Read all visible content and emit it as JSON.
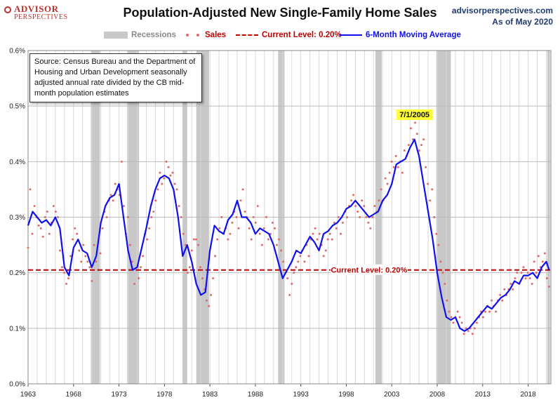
{
  "header": {
    "logo_line1": "ADVISOR",
    "logo_line2": "PERSPECTIVES",
    "title": "Population-Adjusted New Single-Family Home Sales",
    "site": "advisorperspectives.com",
    "date": "As of May 2020"
  },
  "legend": {
    "recessions": "Recessions",
    "sales": "Sales",
    "current": "Current Level: 0.20%",
    "ma": "6-Month Moving Average"
  },
  "note": "Source: Census Bureau and the Department of Housing and Urban Development seasonally adjusted annual rate divided by the CB mid-month population estimates",
  "colors": {
    "recession": "#c8c8c8",
    "sales": "#e06b6b",
    "ma": "#1010ee",
    "current": "#c00000",
    "grid": "#d8d8d8"
  },
  "chart_data": {
    "type": "line",
    "title": "Population-Adjusted New Single-Family Home Sales",
    "xlabel": "",
    "ylabel": "",
    "xlim": [
      1963,
      2020.5
    ],
    "ylim": [
      0,
      0.6
    ],
    "y_ticks": [
      0,
      0.1,
      0.2,
      0.3,
      0.4,
      0.5,
      0.6
    ],
    "y_tick_labels": [
      "0.0%",
      "0.1%",
      "0.2%",
      "0.3%",
      "0.4%",
      "0.5%",
      "0.6%"
    ],
    "x_ticks": [
      1963,
      1968,
      1973,
      1978,
      1983,
      1988,
      1993,
      1998,
      2003,
      2008,
      2013,
      2018
    ],
    "x_tick_labels": [
      "1963",
      "1968",
      "1973",
      "1978",
      "1983",
      "1988",
      "1993",
      "1998",
      "2003",
      "2008",
      "2013",
      "2018"
    ],
    "recessions": [
      [
        1969.9,
        1970.9
      ],
      [
        1973.9,
        1975.2
      ],
      [
        1980.0,
        1980.5
      ],
      [
        1981.5,
        1982.9
      ],
      [
        1990.5,
        1991.2
      ],
      [
        2001.2,
        2001.9
      ],
      [
        2007.9,
        2009.5
      ],
      [
        2020.1,
        2020.4
      ]
    ],
    "current_level": 0.205,
    "current_level_label": "Current Level: 0.20%",
    "peak_annotation": {
      "x": 2005.5,
      "label": "7/1/2005"
    },
    "moving_average": {
      "name": "6-Month Moving Average",
      "x": [
        1963.0,
        1963.5,
        1964.0,
        1964.5,
        1965.0,
        1965.5,
        1966.0,
        1966.5,
        1967.0,
        1967.5,
        1968.0,
        1968.5,
        1969.0,
        1969.5,
        1970.0,
        1970.5,
        1971.0,
        1971.5,
        1972.0,
        1972.5,
        1973.0,
        1973.5,
        1974.0,
        1974.5,
        1975.0,
        1975.5,
        1976.0,
        1976.5,
        1977.0,
        1977.5,
        1978.0,
        1978.5,
        1979.0,
        1979.5,
        1980.0,
        1980.5,
        1981.0,
        1981.5,
        1982.0,
        1982.5,
        1983.0,
        1983.5,
        1984.0,
        1984.5,
        1985.0,
        1985.5,
        1986.0,
        1986.5,
        1987.0,
        1987.5,
        1988.0,
        1988.5,
        1989.0,
        1989.5,
        1990.0,
        1990.5,
        1991.0,
        1991.5,
        1992.0,
        1992.5,
        1993.0,
        1993.5,
        1994.0,
        1994.5,
        1995.0,
        1995.5,
        1996.0,
        1996.5,
        1997.0,
        1997.5,
        1998.0,
        1998.5,
        1999.0,
        1999.5,
        2000.0,
        2000.5,
        2001.0,
        2001.5,
        2002.0,
        2002.5,
        2003.0,
        2003.5,
        2004.0,
        2004.5,
        2005.0,
        2005.5,
        2006.0,
        2006.5,
        2007.0,
        2007.5,
        2008.0,
        2008.5,
        2009.0,
        2009.5,
        2010.0,
        2010.5,
        2011.0,
        2011.5,
        2012.0,
        2012.5,
        2013.0,
        2013.5,
        2014.0,
        2014.5,
        2015.0,
        2015.5,
        2016.0,
        2016.5,
        2017.0,
        2017.5,
        2018.0,
        2018.5,
        2019.0,
        2019.5,
        2020.0,
        2020.3
      ],
      "values": [
        0.285,
        0.31,
        0.3,
        0.29,
        0.295,
        0.285,
        0.3,
        0.28,
        0.21,
        0.195,
        0.245,
        0.26,
        0.24,
        0.235,
        0.21,
        0.23,
        0.29,
        0.32,
        0.335,
        0.34,
        0.36,
        0.3,
        0.24,
        0.205,
        0.21,
        0.245,
        0.28,
        0.32,
        0.35,
        0.37,
        0.375,
        0.37,
        0.35,
        0.3,
        0.23,
        0.25,
        0.22,
        0.18,
        0.16,
        0.165,
        0.24,
        0.285,
        0.275,
        0.27,
        0.295,
        0.305,
        0.33,
        0.3,
        0.3,
        0.29,
        0.27,
        0.28,
        0.275,
        0.27,
        0.25,
        0.22,
        0.19,
        0.205,
        0.22,
        0.24,
        0.235,
        0.25,
        0.265,
        0.255,
        0.24,
        0.27,
        0.275,
        0.285,
        0.29,
        0.3,
        0.315,
        0.32,
        0.33,
        0.32,
        0.31,
        0.3,
        0.305,
        0.31,
        0.33,
        0.34,
        0.36,
        0.395,
        0.4,
        0.405,
        0.425,
        0.44,
        0.41,
        0.36,
        0.31,
        0.26,
        0.2,
        0.155,
        0.12,
        0.115,
        0.12,
        0.1,
        0.095,
        0.1,
        0.11,
        0.12,
        0.13,
        0.14,
        0.135,
        0.145,
        0.155,
        0.16,
        0.17,
        0.185,
        0.18,
        0.195,
        0.195,
        0.2,
        0.19,
        0.21,
        0.22,
        0.205
      ]
    },
    "sales_scatter": {
      "name": "Sales",
      "values": [
        0.245,
        0.35,
        0.27,
        0.32,
        0.3,
        0.285,
        0.28,
        0.265,
        0.3,
        0.31,
        0.27,
        0.29,
        0.32,
        0.31,
        0.3,
        0.24,
        0.21,
        0.2,
        0.18,
        0.19,
        0.23,
        0.26,
        0.28,
        0.27,
        0.24,
        0.22,
        0.25,
        0.23,
        0.22,
        0.21,
        0.185,
        0.25,
        0.22,
        0.205,
        0.235,
        0.28,
        0.31,
        0.3,
        0.33,
        0.34,
        0.33,
        0.36,
        0.35,
        0.34,
        0.4,
        0.32,
        0.27,
        0.3,
        0.25,
        0.22,
        0.18,
        0.205,
        0.19,
        0.21,
        0.23,
        0.27,
        0.26,
        0.28,
        0.3,
        0.31,
        0.33,
        0.35,
        0.38,
        0.36,
        0.37,
        0.4,
        0.39,
        0.375,
        0.38,
        0.36,
        0.35,
        0.32,
        0.3,
        0.27,
        0.25,
        0.2,
        0.21,
        0.24,
        0.26,
        0.26,
        0.25,
        0.21,
        0.19,
        0.17,
        0.15,
        0.14,
        0.16,
        0.19,
        0.23,
        0.26,
        0.28,
        0.3,
        0.27,
        0.28,
        0.26,
        0.27,
        0.29,
        0.31,
        0.3,
        0.28,
        0.33,
        0.35,
        0.31,
        0.3,
        0.28,
        0.26,
        0.3,
        0.29,
        0.32,
        0.27,
        0.25,
        0.28,
        0.3,
        0.26,
        0.27,
        0.29,
        0.28,
        0.25,
        0.26,
        0.24,
        0.22,
        0.2,
        0.19,
        0.16,
        0.18,
        0.2,
        0.21,
        0.22,
        0.23,
        0.24,
        0.22,
        0.25,
        0.23,
        0.26,
        0.27,
        0.28,
        0.26,
        0.27,
        0.25,
        0.23,
        0.24,
        0.26,
        0.27,
        0.26,
        0.29,
        0.28,
        0.3,
        0.27,
        0.29,
        0.31,
        0.3,
        0.32,
        0.33,
        0.34,
        0.32,
        0.31,
        0.3,
        0.33,
        0.32,
        0.3,
        0.29,
        0.28,
        0.3,
        0.32,
        0.31,
        0.33,
        0.35,
        0.33,
        0.37,
        0.36,
        0.38,
        0.4,
        0.39,
        0.41,
        0.39,
        0.4,
        0.38,
        0.42,
        0.41,
        0.43,
        0.46,
        0.44,
        0.47,
        0.45,
        0.42,
        0.43,
        0.44,
        0.39,
        0.36,
        0.33,
        0.35,
        0.3,
        0.27,
        0.25,
        0.22,
        0.2,
        0.18,
        0.15,
        0.13,
        0.12,
        0.11,
        0.12,
        0.13,
        0.12,
        0.11,
        0.09,
        0.1,
        0.095,
        0.1,
        0.09,
        0.1,
        0.11,
        0.12,
        0.13,
        0.12,
        0.13,
        0.14,
        0.13,
        0.15,
        0.14,
        0.13,
        0.15,
        0.16,
        0.15,
        0.17,
        0.16,
        0.17,
        0.18,
        0.17,
        0.19,
        0.2,
        0.18,
        0.2,
        0.21,
        0.19,
        0.2,
        0.19,
        0.18,
        0.22,
        0.2,
        0.23,
        0.21,
        0.22,
        0.235,
        0.19,
        0.175
      ]
    }
  }
}
